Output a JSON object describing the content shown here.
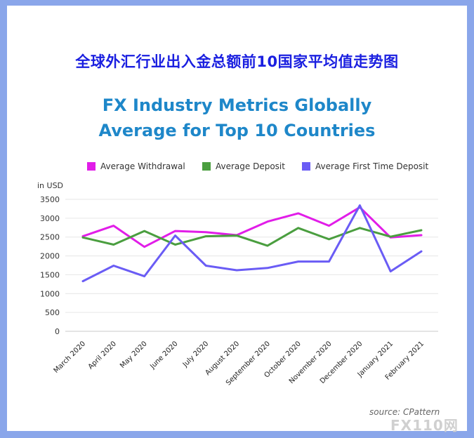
{
  "title_cn": "全球外汇行业出入金总额前10国家平均值走势图",
  "chart_data": {
    "type": "line",
    "title": "FX Industry Metrics Globally Average for Top 10 Countries",
    "ylabel": "in USD",
    "ylim": [
      0,
      3500
    ],
    "yticks": [
      "0",
      "500",
      "1000",
      "1500",
      "2000",
      "2500",
      "3000",
      "3500"
    ],
    "grid": true,
    "legend": "top",
    "categories": [
      "March 2020",
      "April 2020",
      "May 2020",
      "June 2020",
      "July 2020",
      "August 2020",
      "September 2020",
      "October 2020",
      "November 2020",
      "December 2020",
      "January 2021",
      "February 2021"
    ],
    "series": [
      {
        "name": "Average Withdrawal",
        "color": "#e11de8",
        "values": [
          2520,
          2800,
          2240,
          2660,
          2630,
          2550,
          2910,
          3130,
          2800,
          3290,
          2490,
          2550
        ]
      },
      {
        "name": "Average Deposit",
        "color": "#4a9e3f",
        "values": [
          2490,
          2300,
          2660,
          2300,
          2520,
          2540,
          2270,
          2740,
          2440,
          2740,
          2510,
          2680
        ]
      },
      {
        "name": "Average First Time Deposit",
        "color": "#6a5cf5",
        "values": [
          1330,
          1740,
          1460,
          2540,
          1740,
          1620,
          1680,
          1850,
          1850,
          3340,
          1590,
          2120
        ]
      }
    ]
  },
  "source": "source: CPattern",
  "watermark": "FX110网"
}
